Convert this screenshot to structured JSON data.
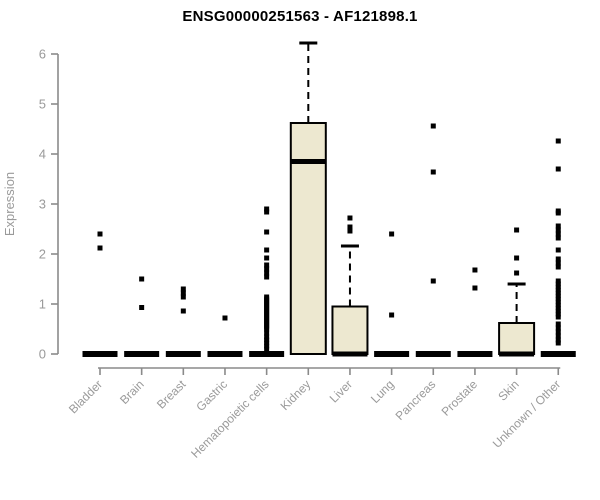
{
  "title": "ENSG00000251563 - AF121898.1",
  "colors": {
    "box_fill": "#ede8d0",
    "box_stroke": "#000000",
    "median": "#000000",
    "whisker": "#000000",
    "outlier": "#000000",
    "axis": "#8a8a8a",
    "tick_label": "#9a9a9a",
    "title": "#000000",
    "background": "#ffffff"
  },
  "chart_data": {
    "type": "box",
    "title": "ENSG00000251563 - AF121898.1",
    "xlabel": "",
    "ylabel": "Expression",
    "ylim": [
      0,
      6.4
    ],
    "yticks": [
      0,
      1,
      2,
      3,
      4,
      5,
      6
    ],
    "grid": false,
    "legend": null,
    "categories": [
      "Bladder",
      "Brain",
      "Breast",
      "Gastric",
      "Hematopoietic cells",
      "Kidney",
      "Liver",
      "Lung",
      "Pancreas",
      "Prostate",
      "Skin",
      "Unknown / Other"
    ],
    "boxes": [
      {
        "category": "Bladder",
        "q1": 0,
        "median": 0,
        "q3": 0,
        "whisker_low": 0,
        "whisker_high": 0,
        "outliers": [
          2.4,
          2.12
        ]
      },
      {
        "category": "Brain",
        "q1": 0,
        "median": 0,
        "q3": 0,
        "whisker_low": 0,
        "whisker_high": 0,
        "outliers": [
          1.5,
          0.93
        ]
      },
      {
        "category": "Breast",
        "q1": 0,
        "median": 0,
        "q3": 0,
        "whisker_low": 0,
        "whisker_high": 0,
        "outliers": [
          1.3,
          1.22,
          1.14,
          0.86
        ]
      },
      {
        "category": "Gastric",
        "q1": 0,
        "median": 0,
        "q3": 0,
        "whisker_low": 0,
        "whisker_high": 0,
        "outliers": [
          0.72
        ]
      },
      {
        "category": "Hematopoietic cells",
        "q1": 0,
        "median": 0,
        "q3": 0,
        "whisker_low": 0,
        "whisker_high": 0,
        "outliers": [
          2.9,
          2.84,
          2.44,
          2.08,
          1.92,
          1.78,
          1.7,
          1.62,
          1.54,
          1.14,
          1.1,
          1.06,
          1.02,
          0.98,
          0.94,
          0.9,
          0.86,
          0.82,
          0.78,
          0.74,
          0.7,
          0.66,
          0.62,
          0.58,
          0.54,
          0.5,
          0.42,
          0.34,
          0.28,
          0.22,
          0.16,
          0.1
        ]
      },
      {
        "category": "Kidney",
        "q1": 0,
        "median": 3.85,
        "q3": 4.62,
        "whisker_low": 0,
        "whisker_high": 6.22,
        "outliers": []
      },
      {
        "category": "Liver",
        "q1": 0,
        "median": 0,
        "q3": 0.95,
        "whisker_low": 0,
        "whisker_high": 2.16,
        "outliers": [
          2.72,
          2.54,
          2.46
        ]
      },
      {
        "category": "Lung",
        "q1": 0,
        "median": 0,
        "q3": 0,
        "whisker_low": 0,
        "whisker_high": 0,
        "outliers": [
          2.4,
          0.78
        ]
      },
      {
        "category": "Pancreas",
        "q1": 0,
        "median": 0,
        "q3": 0,
        "whisker_low": 0,
        "whisker_high": 0,
        "outliers": [
          4.56,
          3.64,
          1.46
        ]
      },
      {
        "category": "Prostate",
        "q1": 0,
        "median": 0,
        "q3": 0,
        "whisker_low": 0,
        "whisker_high": 0,
        "outliers": [
          1.68,
          1.32
        ]
      },
      {
        "category": "Skin",
        "q1": 0,
        "median": 0,
        "q3": 0.62,
        "whisker_low": 0,
        "whisker_high": 1.4,
        "outliers": [
          2.48,
          1.92,
          1.62
        ]
      },
      {
        "category": "Unknown / Other",
        "q1": 0,
        "median": 0,
        "q3": 0,
        "whisker_low": 0,
        "whisker_high": 0,
        "outliers": [
          4.26,
          3.7,
          2.86,
          2.82,
          2.56,
          2.48,
          2.4,
          2.32,
          2.08,
          1.9,
          1.82,
          1.74,
          1.46,
          1.4,
          1.34,
          1.28,
          1.22,
          1.16,
          1.1,
          1.04,
          0.98,
          0.92,
          0.86,
          0.8,
          0.74,
          0.6,
          0.52,
          0.44,
          0.36,
          0.28,
          0.22
        ]
      }
    ]
  }
}
